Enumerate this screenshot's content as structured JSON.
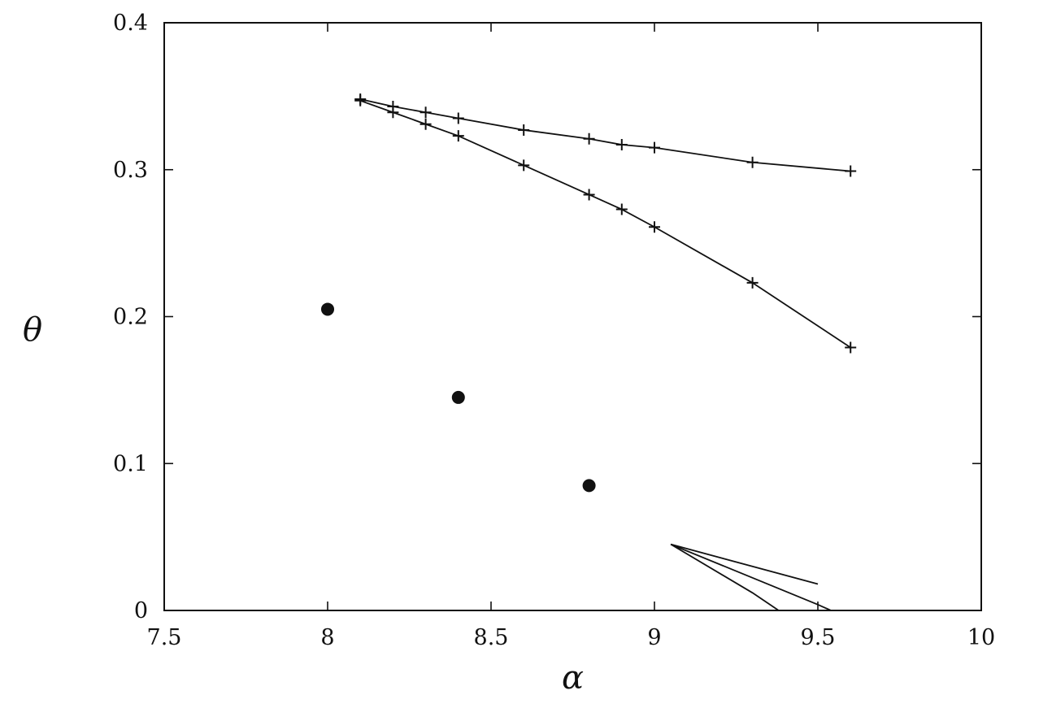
{
  "chart_data": {
    "type": "scatter",
    "title": "",
    "xlabel": "α",
    "ylabel": "θ",
    "xlim": [
      7.5,
      10
    ],
    "ylim": [
      0,
      0.4
    ],
    "xticks": [
      "7.5",
      "8",
      "8.5",
      "9",
      "9.5",
      "10"
    ],
    "yticks": [
      "0",
      "0.1",
      "0.2",
      "0.3",
      "0.4"
    ],
    "grid": false,
    "legend": "none",
    "series": [
      {
        "marker": "plus",
        "line": true,
        "x": [
          8.1,
          8.2,
          8.3,
          8.4,
          8.6,
          8.8,
          8.9,
          9.0,
          9.3,
          9.6
        ],
        "y": [
          0.348,
          0.343,
          0.339,
          0.335,
          0.327,
          0.321,
          0.317,
          0.315,
          0.305,
          0.299
        ]
      },
      {
        "marker": "plus",
        "line": true,
        "x": [
          8.1,
          8.2,
          8.3,
          8.4,
          8.6,
          8.8,
          8.9,
          9.0,
          9.3,
          9.6
        ],
        "y": [
          0.347,
          0.339,
          0.331,
          0.323,
          0.303,
          0.283,
          0.273,
          0.261,
          0.223,
          0.179
        ]
      },
      {
        "marker": "dot",
        "line": false,
        "x": [
          8.0,
          8.4,
          8.8
        ],
        "y": [
          0.205,
          0.145,
          0.085
        ]
      },
      {
        "marker": "none",
        "line": true,
        "x": [
          9.05,
          9.5
        ],
        "y": [
          0.045,
          0.018
        ]
      },
      {
        "marker": "none",
        "line": true,
        "x": [
          9.05,
          9.5,
          9.54
        ],
        "y": [
          0.045,
          0.004,
          0.0
        ]
      },
      {
        "marker": "none",
        "line": true,
        "x": [
          9.05,
          9.3,
          9.38
        ],
        "y": [
          0.045,
          0.012,
          0.0
        ]
      }
    ]
  }
}
